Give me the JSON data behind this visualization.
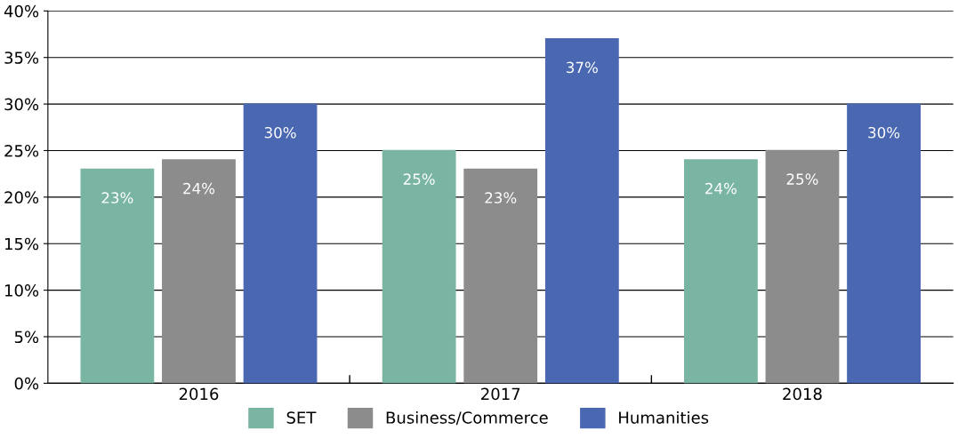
{
  "chart_data": {
    "type": "bar",
    "categories": [
      "2016",
      "2017",
      "2018"
    ],
    "series": [
      {
        "name": "SET",
        "color": "#7ab5a3",
        "values": [
          23,
          25,
          24
        ],
        "value_labels": [
          "23%",
          "25%",
          "24%"
        ]
      },
      {
        "name": "Business/Commerce",
        "color": "#8c8c8c",
        "values": [
          24,
          23,
          25
        ],
        "value_labels": [
          "24%",
          "23%",
          "25%"
        ]
      },
      {
        "name": "Humanities",
        "color": "#4a67b2",
        "values": [
          30,
          37,
          30
        ],
        "value_labels": [
          "30%",
          "37%",
          "30%"
        ]
      }
    ],
    "ylim": [
      0,
      40
    ],
    "yticks": [
      {
        "value": 0,
        "label": "0%"
      },
      {
        "value": 5,
        "label": "5%"
      },
      {
        "value": 10,
        "label": "10%"
      },
      {
        "value": 15,
        "label": "15%"
      },
      {
        "value": 20,
        "label": "20%"
      },
      {
        "value": 25,
        "label": "25%"
      },
      {
        "value": 30,
        "label": "30%"
      },
      {
        "value": 35,
        "label": "35%"
      },
      {
        "value": 40,
        "label": "40%"
      }
    ],
    "grid": "y",
    "legend": "bottom"
  }
}
